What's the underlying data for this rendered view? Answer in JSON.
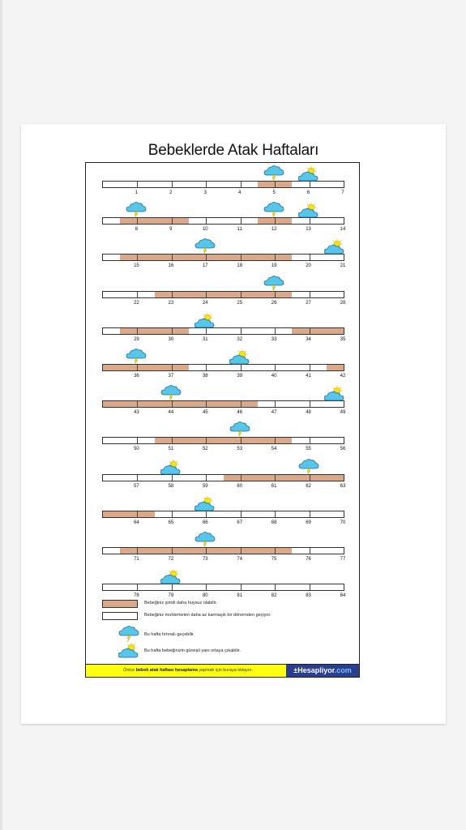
{
  "title": "Bebeklerde Atak Haftaları",
  "colors": {
    "fussy": "#dba88a",
    "cloud": "#57c6ea",
    "sun": "#f7e21a",
    "footer": "#ffff10",
    "logo_bg": "#2a3e8f"
  },
  "rows": [
    {
      "weeks": [
        1,
        2,
        3,
        4,
        5,
        6,
        7
      ],
      "shaded": [
        [
          4.5,
          5.5
        ]
      ],
      "icons": [
        {
          "week": 5,
          "type": "storm"
        },
        {
          "week": 6,
          "type": "sun"
        }
      ]
    },
    {
      "weeks": [
        8,
        9,
        10,
        11,
        12,
        13,
        14
      ],
      "shaded": [
        [
          7.5,
          9.5
        ],
        [
          11.5,
          12.5
        ]
      ],
      "icons": [
        {
          "week": 8,
          "type": "storm"
        },
        {
          "week": 12,
          "type": "storm"
        },
        {
          "week": 13,
          "type": "sun"
        }
      ]
    },
    {
      "weeks": [
        15,
        16,
        17,
        18,
        19,
        20,
        21
      ],
      "shaded": [
        [
          14.5,
          19.5
        ]
      ],
      "icons": [
        {
          "week": 17,
          "type": "storm"
        },
        {
          "week": 21,
          "type": "sun"
        }
      ]
    },
    {
      "weeks": [
        22,
        23,
        24,
        25,
        26,
        27,
        28
      ],
      "shaded": [
        [
          22.5,
          26.5
        ]
      ],
      "icons": [
        {
          "week": 26,
          "type": "storm"
        }
      ]
    },
    {
      "weeks": [
        29,
        30,
        31,
        32,
        33,
        34,
        35
      ],
      "shaded": [
        [
          28.5,
          30.5
        ],
        [
          33.5,
          35
        ]
      ],
      "icons": [
        {
          "week": 31,
          "type": "sun"
        }
      ]
    },
    {
      "weeks": [
        36,
        37,
        38,
        39,
        40,
        41,
        42
      ],
      "shaded": [
        [
          35,
          37.5
        ],
        [
          41.5,
          42
        ]
      ],
      "icons": [
        {
          "week": 36,
          "type": "storm"
        },
        {
          "week": 39,
          "type": "sun"
        }
      ]
    },
    {
      "weeks": [
        43,
        44,
        45,
        46,
        47,
        48,
        49
      ],
      "shaded": [
        [
          42,
          46.5
        ]
      ],
      "icons": [
        {
          "week": 44,
          "type": "storm"
        },
        {
          "week": 49,
          "type": "sun"
        }
      ]
    },
    {
      "weeks": [
        50,
        51,
        52,
        53,
        54,
        55,
        56
      ],
      "shaded": [
        [
          50.5,
          54.5
        ]
      ],
      "icons": [
        {
          "week": 53,
          "type": "storm"
        }
      ]
    },
    {
      "weeks": [
        57,
        58,
        59,
        60,
        61,
        62,
        63
      ],
      "shaded": [
        [
          59.5,
          63
        ]
      ],
      "icons": [
        {
          "week": 58,
          "type": "sun"
        },
        {
          "week": 62,
          "type": "storm"
        }
      ]
    },
    {
      "weeks": [
        64,
        65,
        66,
        67,
        68,
        69,
        70
      ],
      "shaded": [
        [
          63,
          64.5
        ]
      ],
      "icons": [
        {
          "week": 66,
          "type": "sun"
        }
      ]
    },
    {
      "weeks": [
        71,
        72,
        73,
        74,
        75,
        76,
        77
      ],
      "shaded": [
        [
          70.5,
          75.5
        ]
      ],
      "icons": [
        {
          "week": 73,
          "type": "storm"
        }
      ]
    },
    {
      "weeks": [
        78,
        79,
        80,
        81,
        82,
        83,
        84
      ],
      "shaded": [],
      "icons": [
        {
          "week": 79,
          "type": "sun"
        }
      ]
    }
  ],
  "legend": {
    "fussy": "Bebeğiniz şimdi daha huysuz olabilir.",
    "learning": "Bebeğiniz muhtemelen daha az karmaşık bir dönemden geçiyor.",
    "storm": "Bu hafta fırtınalı geçebilir.",
    "sun": "Bu hafta bebeğinizin güneşli yanı ortaya çıkabilir."
  },
  "footer": {
    "prefix": "Önlce ",
    "bold": "bebek atak haftası hesaplama",
    "suffix": " yapmak için buraya tıklayın.",
    "logo_main": "Hesapliyor",
    "logo_tld": ".com"
  }
}
